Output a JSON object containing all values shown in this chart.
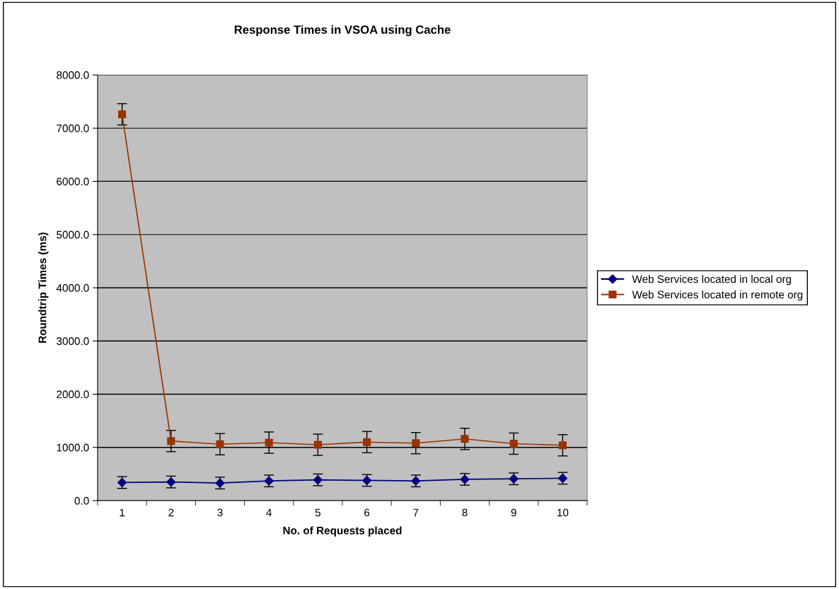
{
  "chart_data": {
    "type": "line",
    "title": "Response Times in VSOA using Cache",
    "xlabel": "No. of Requests placed",
    "ylabel": "Roundtrip Times (ms)",
    "categories": [
      "1",
      "2",
      "3",
      "4",
      "5",
      "6",
      "7",
      "8",
      "9",
      "10"
    ],
    "series": [
      {
        "name": "Web Services located in local org",
        "color": "#000080",
        "marker": "diamond",
        "values": [
          340,
          350,
          330,
          370,
          390,
          380,
          370,
          400,
          410,
          420
        ],
        "errors": [
          110,
          110,
          110,
          110,
          110,
          110,
          110,
          110,
          110,
          110
        ]
      },
      {
        "name": "Web Services located in remote org",
        "color": "#993300",
        "marker": "square",
        "values": [
          7260,
          1120,
          1060,
          1090,
          1050,
          1100,
          1080,
          1160,
          1070,
          1040
        ],
        "errors": [
          200,
          200,
          200,
          200,
          200,
          200,
          200,
          200,
          200,
          200
        ]
      }
    ],
    "ylim": [
      0,
      8000
    ],
    "yticks": [
      {
        "value": 0,
        "label": "0.0"
      },
      {
        "value": 1000,
        "label": "1000.0"
      },
      {
        "value": 2000,
        "label": "2000.0"
      },
      {
        "value": 3000,
        "label": "3000.0"
      },
      {
        "value": 4000,
        "label": "4000.0"
      },
      {
        "value": 5000,
        "label": "5000.0"
      },
      {
        "value": 6000,
        "label": "6000.0"
      },
      {
        "value": 7000,
        "label": "7000.0"
      },
      {
        "value": 8000,
        "label": "8000.0"
      }
    ],
    "grid": "y",
    "legend": "right",
    "line_style": "solid"
  }
}
